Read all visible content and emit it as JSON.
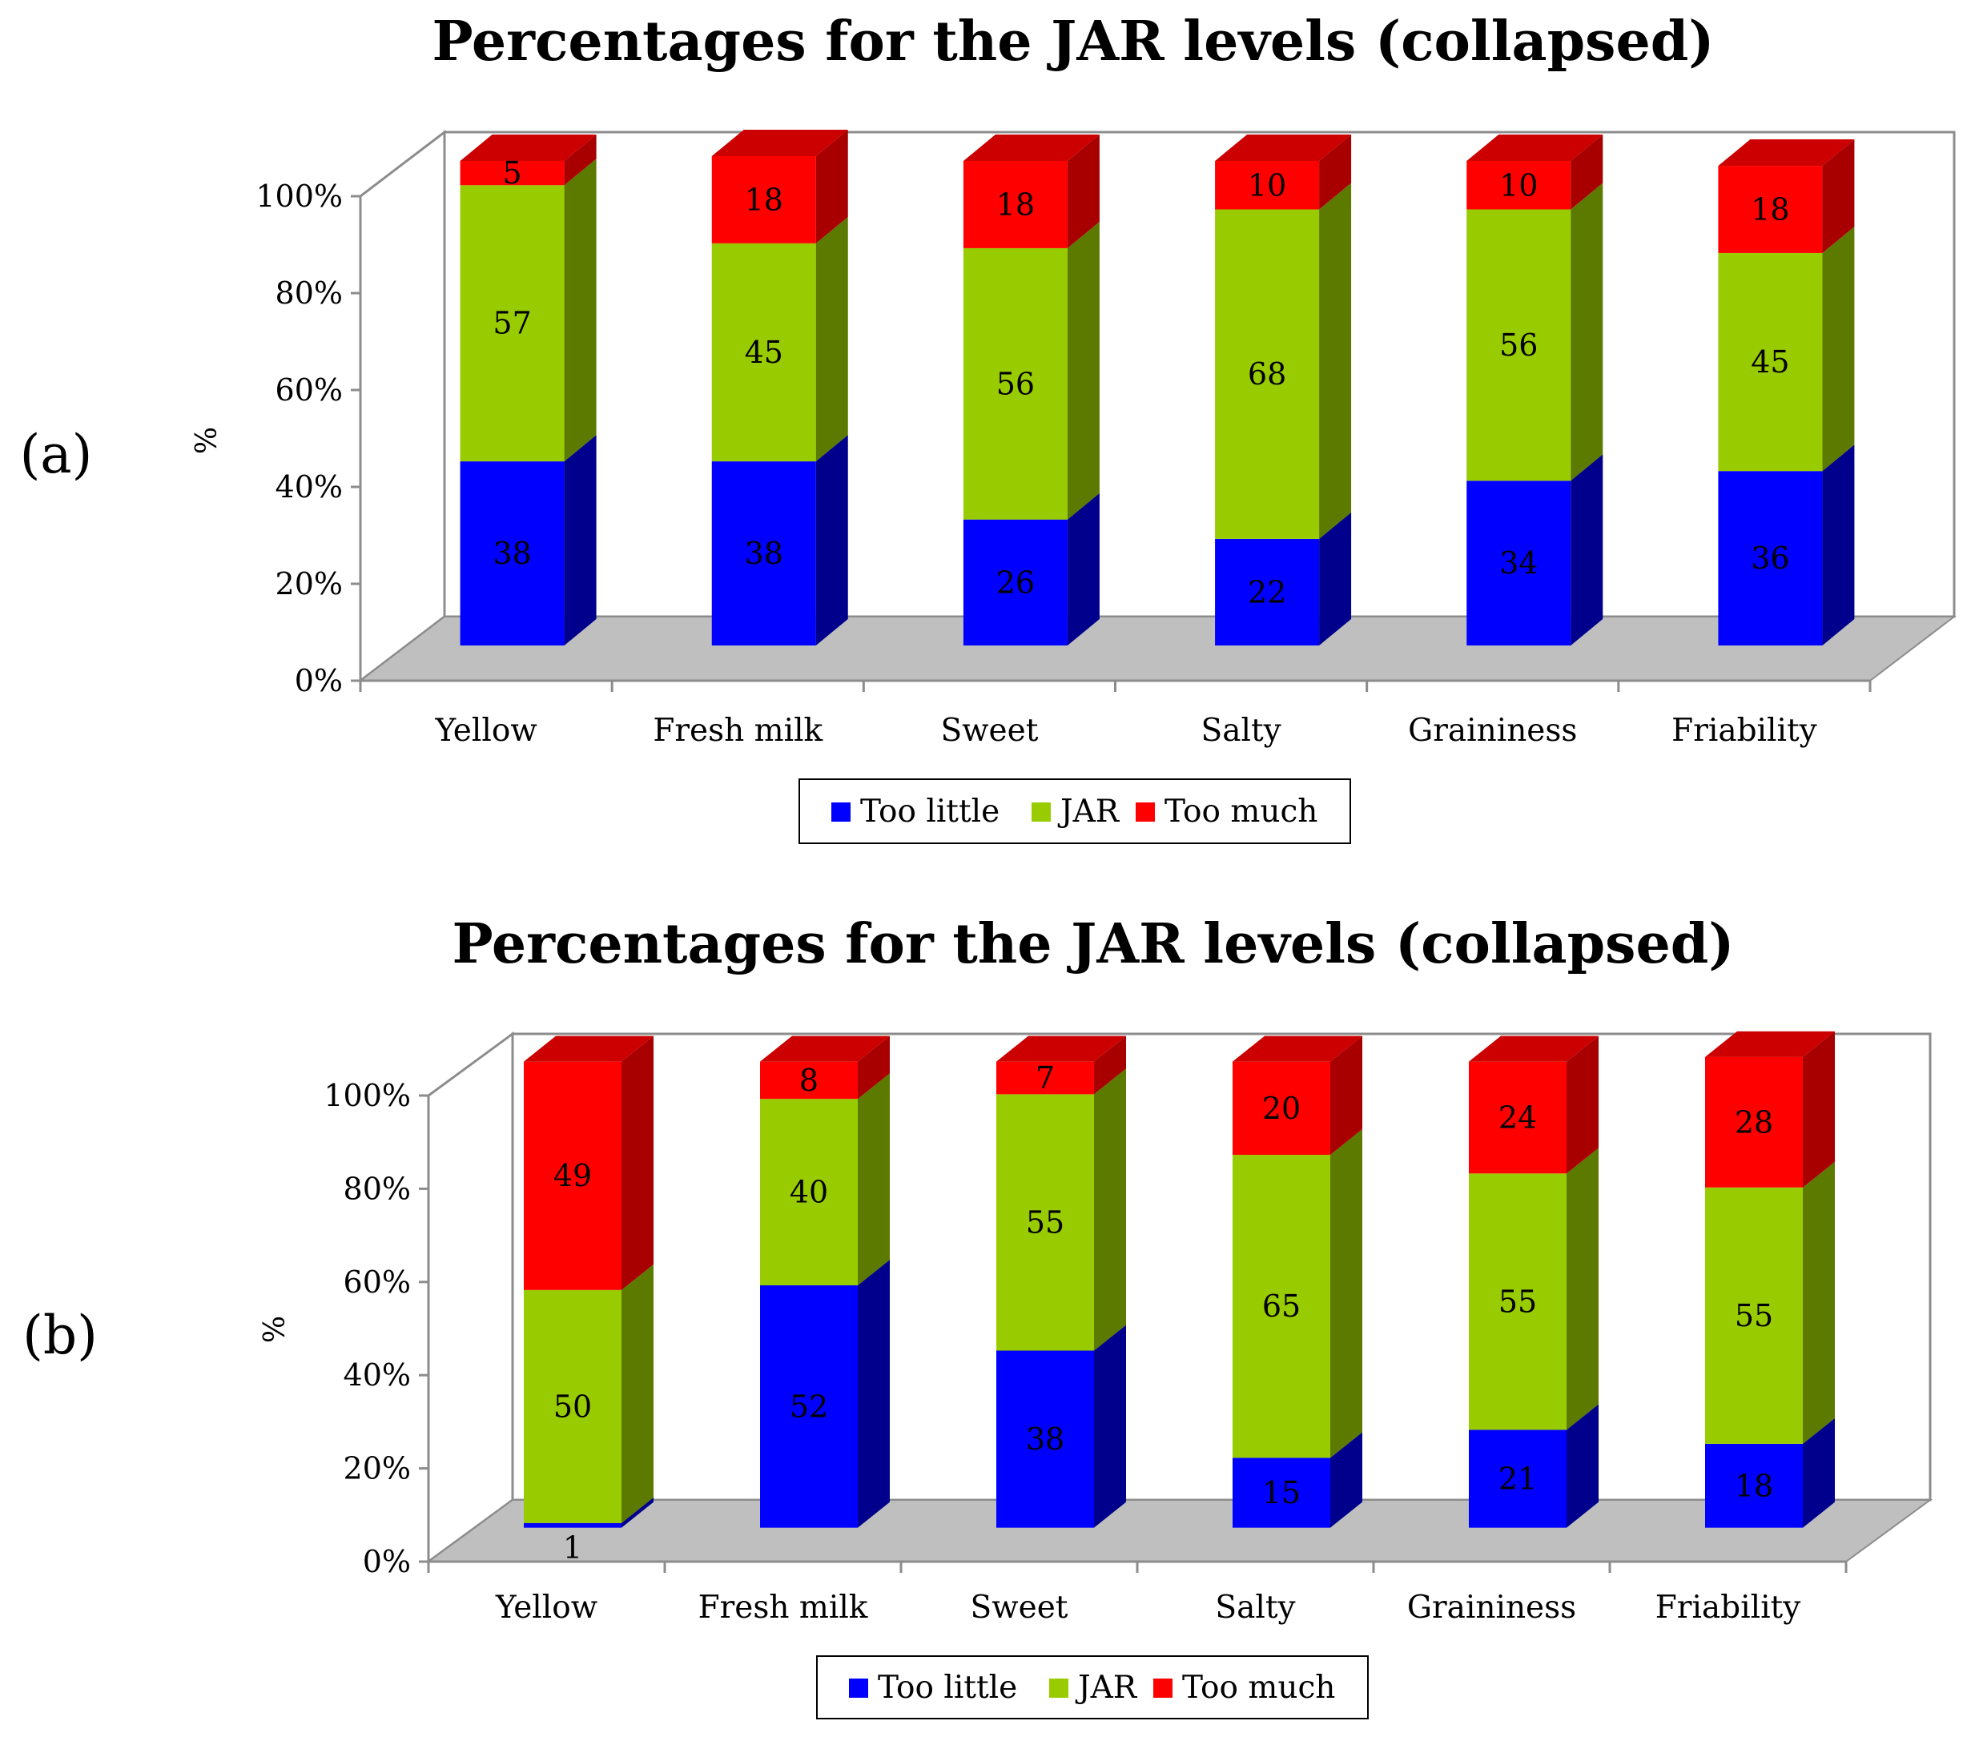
{
  "colors": {
    "too_little": "#0000ff",
    "too_little_side": "#00008c",
    "too_little_top": "#0000c4",
    "jar": "#99cc00",
    "jar_side": "#5c7a00",
    "jar_top": "#7aa300",
    "too_much": "#ff0000",
    "too_much_side": "#a80000",
    "too_much_top": "#cc0000",
    "floor": "#bfbfbf",
    "axis": "#8c8c8c"
  },
  "chart_data": [
    {
      "panel_label": "(a)",
      "type": "bar",
      "stacked": true,
      "three_d": true,
      "title": "Percentages for the JAR levels (collapsed)",
      "xlabel": "",
      "ylabel": "%",
      "ylim": [
        0,
        100
      ],
      "yticks": [
        "0%",
        "20%",
        "40%",
        "60%",
        "80%",
        "100%"
      ],
      "categories": [
        "Yellow",
        "Fresh milk",
        "Sweet",
        "Salty",
        "Graininess",
        "Friability"
      ],
      "series": [
        {
          "name": "Too little",
          "color_key": "too_little",
          "values": [
            38,
            38,
            26,
            22,
            34,
            36
          ],
          "labels": [
            "38",
            "38",
            "26",
            "22",
            "34",
            "36"
          ]
        },
        {
          "name": "JAR",
          "color_key": "jar",
          "values": [
            57,
            45,
            56,
            68,
            56,
            45
          ],
          "labels": [
            "57",
            "45",
            "56",
            "68",
            "56",
            "45"
          ]
        },
        {
          "name": "Too much",
          "color_key": "too_much",
          "values": [
            5,
            18,
            18,
            10,
            10,
            18
          ],
          "labels": [
            "5",
            "18",
            "18",
            "10",
            "10",
            "18"
          ]
        }
      ],
      "legend": [
        "Too little",
        "JAR",
        "Too much"
      ],
      "legend_position": "bottom"
    },
    {
      "panel_label": "(b)",
      "type": "bar",
      "stacked": true,
      "three_d": true,
      "title": "Percentages for the JAR levels (collapsed)",
      "xlabel": "",
      "ylabel": "%",
      "ylim": [
        0,
        100
      ],
      "yticks": [
        "0%",
        "20%",
        "40%",
        "60%",
        "80%",
        "100%"
      ],
      "categories": [
        "Yellow",
        "Fresh milk",
        "Sweet",
        "Salty",
        "Graininess",
        "Friability"
      ],
      "series": [
        {
          "name": "Too little",
          "color_key": "too_little",
          "values": [
            1,
            52,
            38,
            15,
            21,
            18
          ],
          "labels": [
            "1",
            "52",
            "38",
            "15",
            "21",
            "18"
          ]
        },
        {
          "name": "JAR",
          "color_key": "jar",
          "values": [
            50,
            40,
            55,
            65,
            55,
            55
          ],
          "labels": [
            "50",
            "40",
            "55",
            "65",
            "55",
            "55"
          ]
        },
        {
          "name": "Too much",
          "color_key": "too_much",
          "values": [
            49,
            8,
            7,
            20,
            24,
            28
          ],
          "labels": [
            "49",
            "8",
            "7",
            "20",
            "24",
            "28"
          ]
        }
      ],
      "legend": [
        "Too little",
        "JAR",
        "Too much"
      ],
      "legend_position": "bottom"
    }
  ]
}
